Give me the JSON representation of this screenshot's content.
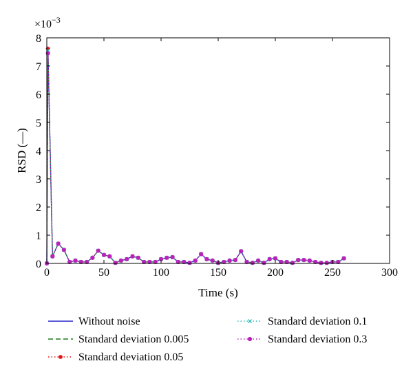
{
  "chart_data": {
    "type": "line",
    "xlabel": "Time (s)",
    "ylabel": "RSD (—)",
    "exponent_label": "×10",
    "exponent_power": "−3",
    "xlim": [
      0,
      300
    ],
    "ylim": [
      0,
      8
    ],
    "xticks": [
      "0",
      "50",
      "100",
      "150",
      "200",
      "250",
      "300"
    ],
    "yticks": [
      "0",
      "1",
      "2",
      "3",
      "4",
      "5",
      "6",
      "7",
      "8"
    ],
    "grid": false,
    "legend_placement": "bottom",
    "x": [
      0,
      1,
      5,
      10,
      15,
      20,
      25,
      30,
      35,
      40,
      45,
      50,
      55,
      60,
      65,
      70,
      75,
      80,
      85,
      90,
      95,
      100,
      105,
      110,
      115,
      120,
      125,
      130,
      135,
      140,
      145,
      150,
      155,
      160,
      165,
      170,
      175,
      180,
      185,
      190,
      195,
      200,
      205,
      210,
      215,
      220,
      225,
      230,
      235,
      240,
      245,
      250,
      255,
      260
    ],
    "series": [
      {
        "name": "Without noise",
        "color": "#2222cc",
        "style": "solid",
        "marker": "none",
        "values": [
          0,
          7.65,
          0.25,
          0.7,
          0.48,
          0.05,
          0.1,
          0.05,
          0.05,
          0.2,
          0.45,
          0.3,
          0.25,
          0.02,
          0.1,
          0.15,
          0.25,
          0.2,
          0.05,
          0.05,
          0.05,
          0.15,
          0.2,
          0.22,
          0.05,
          0.05,
          0.02,
          0.1,
          0.33,
          0.15,
          0.1,
          0.02,
          0.05,
          0.1,
          0.12,
          0.43,
          0.05,
          0.02,
          0.1,
          0.02,
          0.15,
          0.18,
          0.05,
          0.05,
          0.02,
          0.12,
          0.12,
          0.1,
          0.05,
          0.02,
          0.02,
          0.05,
          0.05,
          0.18
        ]
      },
      {
        "name": "Standard deviation 0.005",
        "color": "#1a7a1a",
        "style": "dashed",
        "marker": "none",
        "values": [
          0,
          7.6,
          0.25,
          0.7,
          0.48,
          0.05,
          0.1,
          0.05,
          0.05,
          0.2,
          0.45,
          0.3,
          0.25,
          0.02,
          0.1,
          0.15,
          0.25,
          0.2,
          0.05,
          0.05,
          0.05,
          0.15,
          0.2,
          0.22,
          0.05,
          0.05,
          0.02,
          0.1,
          0.33,
          0.15,
          0.1,
          0.02,
          0.05,
          0.1,
          0.12,
          0.43,
          0.05,
          0.02,
          0.1,
          0.02,
          0.15,
          0.18,
          0.05,
          0.05,
          0.02,
          0.12,
          0.12,
          0.1,
          0.05,
          0.02,
          0.02,
          0.05,
          0.05,
          0.18
        ]
      },
      {
        "name": "Standard deviation 0.05",
        "color": "#e01010",
        "style": "dotted",
        "marker": "star",
        "values": [
          0,
          7.62,
          0.26,
          0.7,
          0.48,
          0.05,
          0.1,
          0.05,
          0.05,
          0.2,
          0.45,
          0.3,
          0.25,
          0.02,
          0.1,
          0.15,
          0.25,
          0.2,
          0.05,
          0.05,
          0.05,
          0.15,
          0.2,
          0.22,
          0.05,
          0.05,
          0.02,
          0.1,
          0.33,
          0.15,
          0.1,
          0.02,
          0.05,
          0.1,
          0.12,
          0.43,
          0.05,
          0.02,
          0.1,
          0.02,
          0.15,
          0.18,
          0.05,
          0.05,
          0.02,
          0.12,
          0.12,
          0.1,
          0.05,
          0.02,
          0.02,
          0.05,
          0.05,
          0.18
        ]
      },
      {
        "name": "Standard deviation 0.1",
        "color": "#22bbbb",
        "style": "dotted",
        "marker": "x",
        "values": [
          0,
          7.55,
          0.25,
          0.7,
          0.48,
          0.05,
          0.1,
          0.05,
          0.05,
          0.2,
          0.45,
          0.3,
          0.25,
          0.02,
          0.1,
          0.15,
          0.25,
          0.2,
          0.05,
          0.05,
          0.05,
          0.15,
          0.2,
          0.22,
          0.05,
          0.05,
          0.02,
          0.1,
          0.33,
          0.15,
          0.1,
          0.02,
          0.05,
          0.1,
          0.12,
          0.43,
          0.05,
          0.02,
          0.1,
          0.02,
          0.15,
          0.18,
          0.05,
          0.05,
          0.02,
          0.12,
          0.12,
          0.1,
          0.05,
          0.02,
          0.02,
          0.05,
          0.05,
          0.18
        ]
      },
      {
        "name": "Standard deviation 0.3",
        "color": "#bb22bb",
        "style": "dotted",
        "marker": "dot",
        "values": [
          0,
          7.45,
          0.25,
          0.7,
          0.48,
          0.05,
          0.1,
          0.05,
          0.05,
          0.2,
          0.45,
          0.3,
          0.25,
          0.02,
          0.1,
          0.15,
          0.25,
          0.2,
          0.05,
          0.05,
          0.05,
          0.15,
          0.2,
          0.22,
          0.05,
          0.05,
          0.02,
          0.1,
          0.33,
          0.15,
          0.1,
          0.02,
          0.05,
          0.1,
          0.12,
          0.43,
          0.05,
          0.02,
          0.1,
          0.02,
          0.15,
          0.18,
          0.05,
          0.05,
          0.02,
          0.12,
          0.12,
          0.1,
          0.05,
          0.02,
          0.02,
          0.05,
          0.05,
          0.18
        ]
      }
    ]
  }
}
